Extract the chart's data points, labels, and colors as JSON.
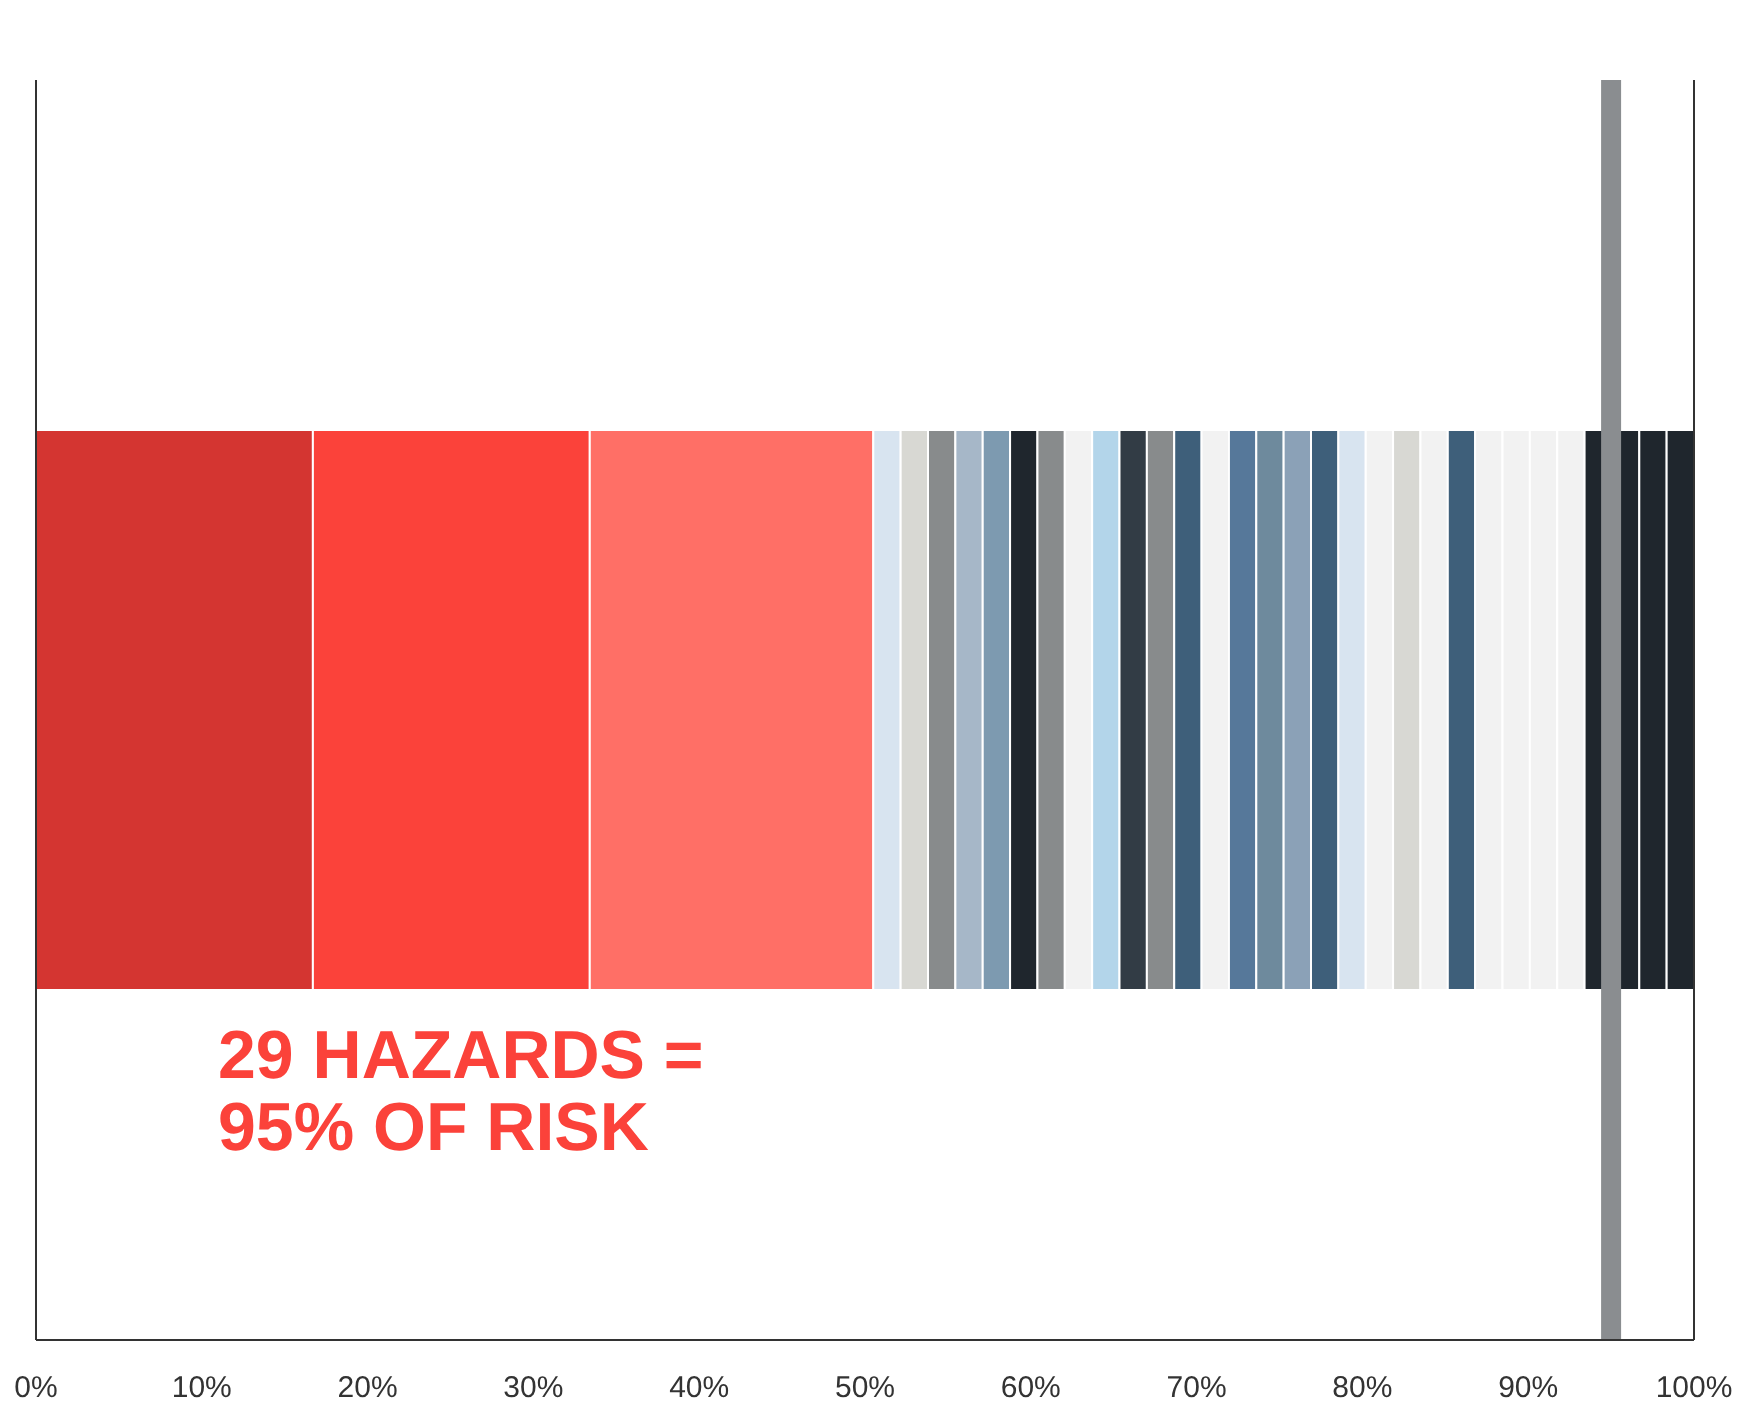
{
  "chart_data": {
    "type": "bar",
    "orientation": "horizontal",
    "stacked": true,
    "categories": [
      null
    ],
    "series": [
      {
        "color": "#d43531",
        "values": [
          16.7
        ]
      },
      {
        "color": "#fb423a",
        "values": [
          16.7
        ]
      },
      {
        "color": "#ff6f66",
        "values": [
          17.1
        ]
      },
      {
        "color": "#d8e4f0",
        "values": [
          1.65
        ]
      },
      {
        "color": "#d8d8d3",
        "values": [
          1.65
        ]
      },
      {
        "color": "#888b8c",
        "values": [
          1.65
        ]
      },
      {
        "color": "#a6b7c8",
        "values": [
          1.65
        ]
      },
      {
        "color": "#7d9ab0",
        "values": [
          1.65
        ]
      },
      {
        "color": "#1f262d",
        "values": [
          1.65
        ]
      },
      {
        "color": "#888b8c",
        "values": [
          1.65
        ]
      },
      {
        "color": "#f2f2f2",
        "values": [
          1.65
        ]
      },
      {
        "color": "#b3d5ea",
        "values": [
          1.65
        ]
      },
      {
        "color": "#323c45",
        "values": [
          1.65
        ]
      },
      {
        "color": "#888b8c",
        "values": [
          1.65
        ]
      },
      {
        "color": "#3e5f7a",
        "values": [
          1.65
        ]
      },
      {
        "color": "#f2f2f2",
        "values": [
          1.65
        ]
      },
      {
        "color": "#56789a",
        "values": [
          1.65
        ]
      },
      {
        "color": "#6e8a9d",
        "values": [
          1.65
        ]
      },
      {
        "color": "#8ba1b7",
        "values": [
          1.65
        ]
      },
      {
        "color": "#3e5f7a",
        "values": [
          1.65
        ]
      },
      {
        "color": "#d8e4f0",
        "values": [
          1.65
        ]
      },
      {
        "color": "#f2f2f2",
        "values": [
          1.65
        ]
      },
      {
        "color": "#d8d8d3",
        "values": [
          1.65
        ]
      },
      {
        "color": "#f2f2f2",
        "values": [
          1.65
        ]
      },
      {
        "color": "#3e5f7a",
        "values": [
          1.65
        ]
      },
      {
        "color": "#f2f2f2",
        "values": [
          1.65
        ]
      },
      {
        "color": "#f2f2f2",
        "values": [
          1.65
        ]
      },
      {
        "color": "#f2f2f2",
        "values": [
          1.65
        ]
      },
      {
        "color": "#f2f2f2",
        "values": [
          1.65
        ]
      },
      {
        "color": "#1f262d",
        "values": [
          1.65
        ]
      },
      {
        "color": "#1f262d",
        "values": [
          1.65
        ]
      },
      {
        "color": "#1f262d",
        "values": [
          1.65
        ]
      },
      {
        "color": "#1f262d",
        "values": [
          1.65
        ]
      }
    ],
    "xlim": [
      0,
      100
    ],
    "xticks": [
      {
        "value": 0,
        "label": "0%"
      },
      {
        "value": 10,
        "label": "10%"
      },
      {
        "value": 20,
        "label": "20%"
      },
      {
        "value": 30,
        "label": "30%"
      },
      {
        "value": 40,
        "label": "40%"
      },
      {
        "value": 50,
        "label": "50%"
      },
      {
        "value": 60,
        "label": "60%"
      },
      {
        "value": 70,
        "label": "70%"
      },
      {
        "value": 80,
        "label": "80%"
      },
      {
        "value": 90,
        "label": "90%"
      },
      {
        "value": 100,
        "label": "100%"
      }
    ],
    "ref_lines": [
      {
        "axis": "x",
        "value": 95,
        "color": "#8a8d90"
      }
    ],
    "annotations": [
      "29 HAZARDS =\n95% OF RISK"
    ]
  }
}
